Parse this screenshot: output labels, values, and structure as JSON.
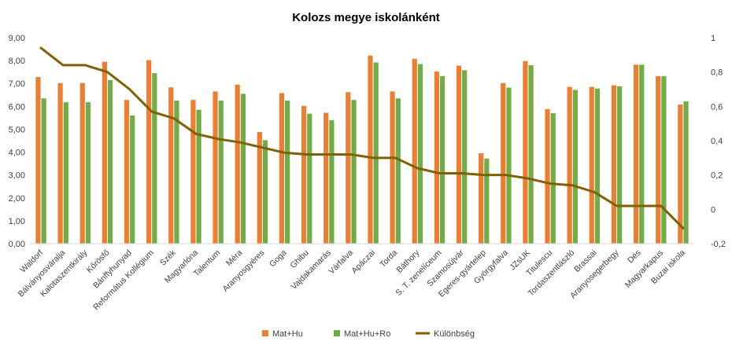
{
  "chart_data": {
    "type": "bar",
    "title": "Kolozs megye iskolánként",
    "xlabel": "",
    "ylabel": "",
    "categories": [
      "Waldorf",
      "Bálványosváralja",
      "Kalotaszentkirály",
      "Kőrösfő",
      "Bánffyhunyad",
      "Református Kollégium",
      "Szék",
      "Magyarlóna",
      "Talentum",
      "Méra",
      "Aranyosgyéres",
      "Goga",
      "Ghibu",
      "Vajdakamarás",
      "Várfalva",
      "Apáczai",
      "Torda",
      "Báthory",
      "S. T. zenelíceum",
      "Szamosújvár",
      "Egeres-gyártelep",
      "Györgyfalva",
      "JZsUK",
      "Titulescu",
      "Tordaszentlászló",
      "Brassai",
      "Aranyosegerbegy",
      "Dés",
      "Magyarkapus",
      "Buzai iskola"
    ],
    "y_ticks": [
      "0,00",
      "1,00",
      "2,00",
      "3,00",
      "4,00",
      "5,00",
      "6,00",
      "7,00",
      "8,00",
      "9,00"
    ],
    "y2_ticks": [
      "-0,2",
      "0",
      "0,2",
      "0,4",
      "0,6",
      "0,8",
      "1"
    ],
    "ylim": [
      0,
      9
    ],
    "y2lim": [
      -0.2,
      1
    ],
    "grid": false,
    "legend_position": "bottom",
    "series": [
      {
        "name": "Mat+Hu",
        "type": "bar",
        "axis": "left",
        "color": "#ED7D31",
        "values": [
          7.28,
          7.02,
          7.02,
          7.95,
          6.28,
          8.02,
          6.83,
          6.28,
          6.65,
          6.95,
          4.88,
          6.58,
          6.02,
          5.72,
          6.62,
          8.22,
          6.65,
          8.08,
          7.52,
          7.78,
          3.95,
          7.02,
          7.98,
          5.88,
          6.85,
          6.85,
          6.92,
          7.82,
          7.32,
          6.08
        ]
      },
      {
        "name": "Mat+Hu+Ro",
        "type": "bar",
        "axis": "left",
        "color": "#70AD47",
        "values": [
          6.35,
          6.18,
          6.18,
          7.15,
          5.6,
          7.45,
          6.25,
          5.85,
          6.25,
          6.55,
          4.52,
          6.25,
          5.68,
          5.4,
          6.28,
          7.92,
          6.35,
          7.85,
          7.32,
          7.58,
          3.72,
          6.82,
          7.8,
          5.7,
          6.72,
          6.78,
          6.88,
          7.82,
          7.32,
          6.22
        ]
      },
      {
        "name": "Különbség",
        "type": "line",
        "axis": "right",
        "color": "#806000",
        "values": [
          0.94,
          0.84,
          0.84,
          0.8,
          0.7,
          0.57,
          0.53,
          0.44,
          0.41,
          0.39,
          0.36,
          0.33,
          0.32,
          0.32,
          0.32,
          0.3,
          0.3,
          0.24,
          0.21,
          0.21,
          0.2,
          0.2,
          0.18,
          0.15,
          0.14,
          0.1,
          0.02,
          0.02,
          0.02,
          -0.11
        ]
      }
    ]
  }
}
